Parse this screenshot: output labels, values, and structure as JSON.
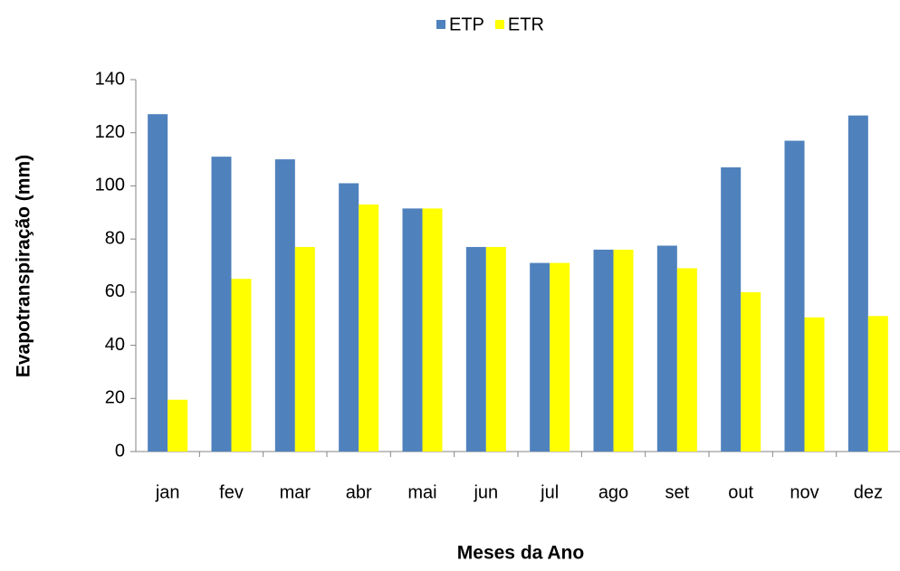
{
  "chart_data": {
    "type": "bar",
    "categories": [
      "jan",
      "fev",
      "mar",
      "abr",
      "mai",
      "jun",
      "jul",
      "ago",
      "set",
      "out",
      "nov",
      "dez"
    ],
    "series": [
      {
        "name": "ETP",
        "color": "#4f81bd",
        "values": [
          127,
          111,
          110,
          101,
          91.5,
          77,
          71,
          76,
          77.5,
          107,
          117,
          126.5
        ]
      },
      {
        "name": "ETR",
        "color": "#ffff00",
        "values": [
          19.5,
          65,
          77,
          93,
          91.5,
          77,
          71,
          76,
          69,
          60,
          50.5,
          51
        ]
      }
    ],
    "x_label": "Meses da Ano",
    "y_label": "Evapotranspiração (mm)",
    "ylim": [
      0,
      140
    ],
    "yticks": [
      0,
      20,
      40,
      60,
      80,
      100,
      120,
      140
    ],
    "grid": false,
    "legend": "top"
  }
}
